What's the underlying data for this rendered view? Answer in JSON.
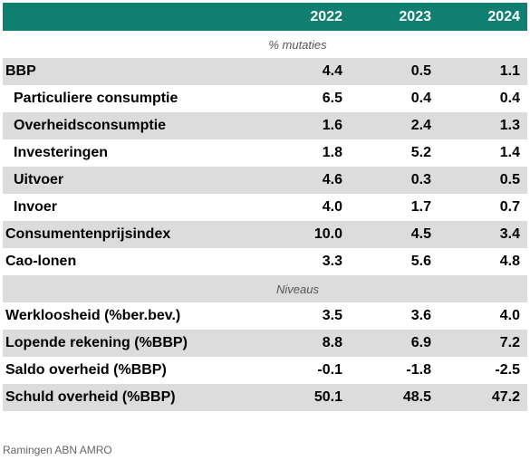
{
  "header": {
    "years": [
      "2022",
      "2023",
      "2024"
    ]
  },
  "sections": {
    "mutaties": "% mutaties",
    "niveaus": "Niveaus"
  },
  "rows_mutaties": [
    {
      "label": "BBP",
      "values": [
        "4.4",
        "0.5",
        "1.1"
      ]
    },
    {
      "label": "Particuliere consumptie",
      "values": [
        "6.5",
        "0.4",
        "0.4"
      ]
    },
    {
      "label": "Overheidsconsumptie",
      "values": [
        "1.6",
        "2.4",
        "1.3"
      ]
    },
    {
      "label": "Investeringen",
      "values": [
        "1.8",
        "5.2",
        "1.4"
      ]
    },
    {
      "label": "Uitvoer",
      "values": [
        "4.6",
        "0.3",
        "0.5"
      ]
    },
    {
      "label": "Invoer",
      "values": [
        "4.0",
        "1.7",
        "0.7"
      ]
    },
    {
      "label": "Consumentenprijsindex",
      "values": [
        "10.0",
        "4.5",
        "3.4"
      ]
    },
    {
      "label": "Cao-lonen",
      "values": [
        "3.3",
        "5.6",
        "4.8"
      ]
    }
  ],
  "rows_niveaus": [
    {
      "label": "Werkloosheid (%ber.bev.)",
      "values": [
        "3.5",
        "3.6",
        "4.0"
      ]
    },
    {
      "label": "Lopende rekening (%BBP)",
      "values": [
        "8.8",
        "6.9",
        "7.2"
      ]
    },
    {
      "label": "Saldo overheid (%BBP)",
      "values": [
        "-0.1",
        "-1.8",
        "-2.5"
      ]
    },
    {
      "label": "Schuld overheid (%BBP)",
      "values": [
        "50.1",
        "48.5",
        "47.2"
      ]
    }
  ],
  "source": "Ramingen ABN AMRO",
  "colors": {
    "header_bg": "#0f7f72",
    "shade": "#dcdcdc"
  }
}
